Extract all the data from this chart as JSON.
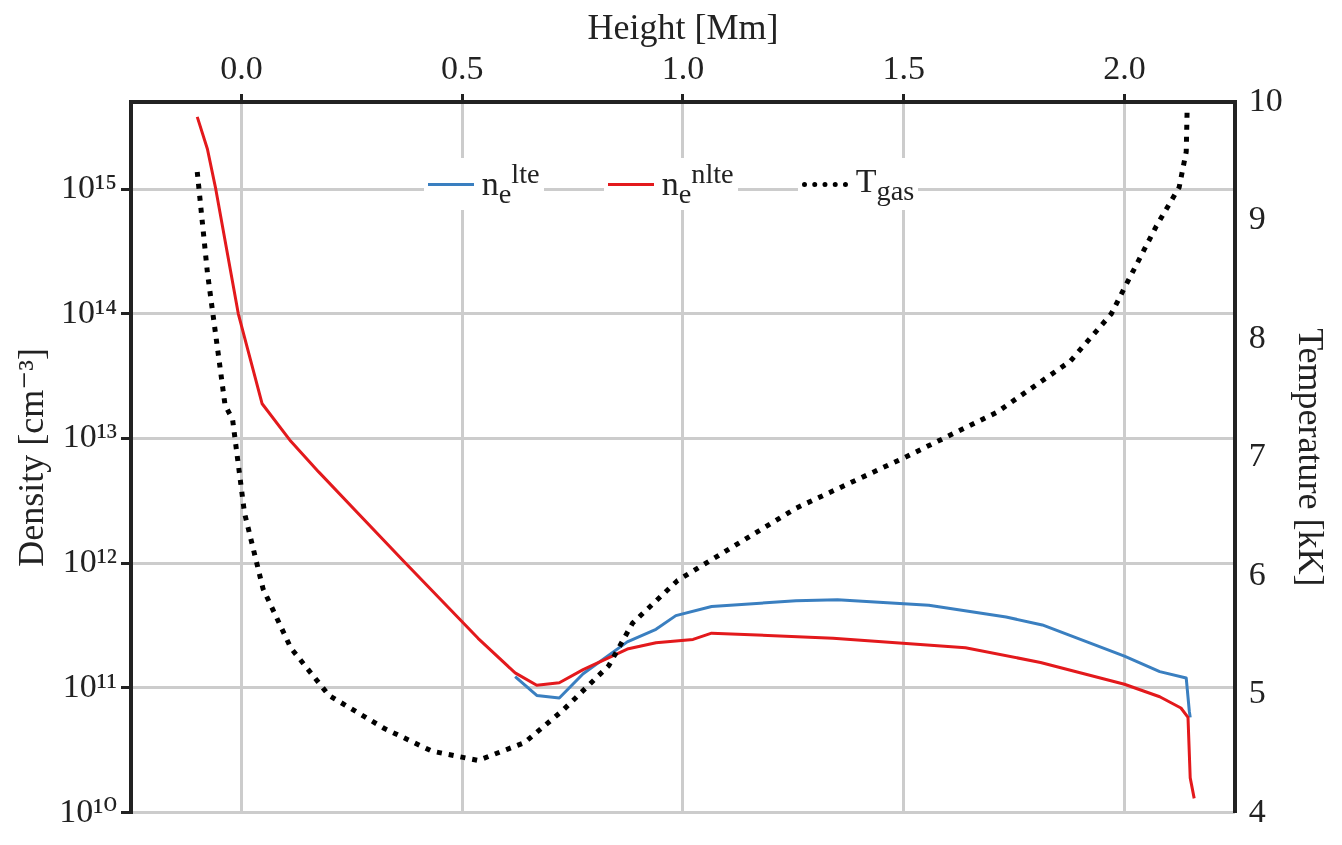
{
  "chart_data": {
    "type": "line",
    "xlabel": "Height [Mm]",
    "ylabel": "Density [cm⁻³]",
    "y2label": "Temperature [kK]",
    "xlim": [
      -0.25,
      2.25
    ],
    "xticks": [
      {
        "value": 0,
        "label": "0.0"
      },
      {
        "value": 0.5,
        "label": "0.5"
      },
      {
        "value": 1,
        "label": "1.0"
      },
      {
        "value": 1.5,
        "label": "1.5"
      },
      {
        "value": 2,
        "label": "2.0"
      }
    ],
    "ylim": [
      10000000000.0,
      5000000000000000.0
    ],
    "log": "y",
    "yticks": [
      {
        "value": 10000000000.0,
        "label": "10¹⁰"
      },
      {
        "value": 100000000000.0,
        "label": "10¹¹"
      },
      {
        "value": 1000000000000.0,
        "label": "10¹²"
      },
      {
        "value": 10000000000000.0,
        "label": "10¹³"
      },
      {
        "value": 100000000000000.0,
        "label": "10¹⁴"
      },
      {
        "value": 1000000000000000.0,
        "label": "10¹⁵"
      }
    ],
    "y2lim": [
      4,
      10
    ],
    "y2ticks": [
      4,
      5,
      6,
      7,
      8,
      9,
      10
    ],
    "grid": true,
    "legend": "top",
    "marker": "none",
    "series": [
      {
        "name": "n$_{e}$$^{lte}$",
        "color": "#3a7fc0",
        "line_style": "solid",
        "x": [
          0.62,
          0.669,
          0.72,
          0.774,
          0.874,
          0.939,
          0.984,
          1.065,
          1.256,
          1.35,
          1.557,
          1.732,
          1.814,
          2.0,
          2.08,
          2.14,
          2.147,
          2.149
        ],
        "values": [
          123000000000.0,
          87000000000.0,
          83000000000.0,
          130000000000.0,
          234000000000.0,
          295000000000.0,
          380000000000.0,
          450000000000.0,
          500000000000.0,
          510000000000.0,
          460000000000.0,
          370000000000.0,
          320000000000.0,
          180000000000.0,
          135000000000.0,
          120000000000.0,
          65000000000.0,
          58000000000.0
        ]
      },
      {
        "name": "n$_{e}$$^{nlte}$",
        "color": "#e3191c",
        "line_style": "solid",
        "x": [
          -0.1,
          -0.077,
          -0.058,
          -0.007,
          0.047,
          0.112,
          0.175,
          0.366,
          0.536,
          0.62,
          0.669,
          0.72,
          0.774,
          0.874,
          0.939,
          1.023,
          1.065,
          1.34,
          1.64,
          1.81,
          2.0,
          2.08,
          2.128,
          2.144,
          2.149,
          2.158
        ],
        "values": [
          3800000000000000.0,
          2100000000000000.0,
          1000000000000000.0,
          100000000000000.0,
          19000000000000.0,
          9500000000000.0,
          5400000000000.0,
          1050000000000.0,
          250000000000.0,
          132000000000.0,
          105000000000.0,
          110000000000.0,
          140000000000.0,
          205000000000.0,
          230000000000.0,
          245000000000.0,
          275000000000.0,
          250000000000.0,
          210000000000.0,
          160000000000.0,
          107000000000.0,
          85000000000.0,
          69000000000.0,
          58000000000.0,
          19000000000.0,
          13000000000.0
        ]
      },
      {
        "name": "T$_{gas}$",
        "color": "#000000",
        "axis": "y2",
        "line_style": "dotted",
        "x": [
          -0.1,
          -0.077,
          -0.037,
          -0.02,
          0.007,
          0.049,
          0.112,
          0.198,
          0.324,
          0.431,
          0.536,
          0.641,
          0.727,
          0.832,
          0.886,
          0.988,
          1.256,
          1.503,
          1.711,
          1.877,
          1.97,
          2.0,
          2.072,
          2.124,
          2.14,
          2.142
        ],
        "values": [
          9.41,
          8.56,
          7.44,
          7.32,
          6.53,
          5.89,
          5.39,
          4.99,
          4.71,
          4.52,
          4.44,
          4.59,
          4.86,
          5.24,
          5.6,
          5.96,
          6.57,
          7.0,
          7.38,
          7.81,
          8.21,
          8.43,
          8.95,
          9.28,
          9.58,
          9.93
        ]
      }
    ]
  }
}
